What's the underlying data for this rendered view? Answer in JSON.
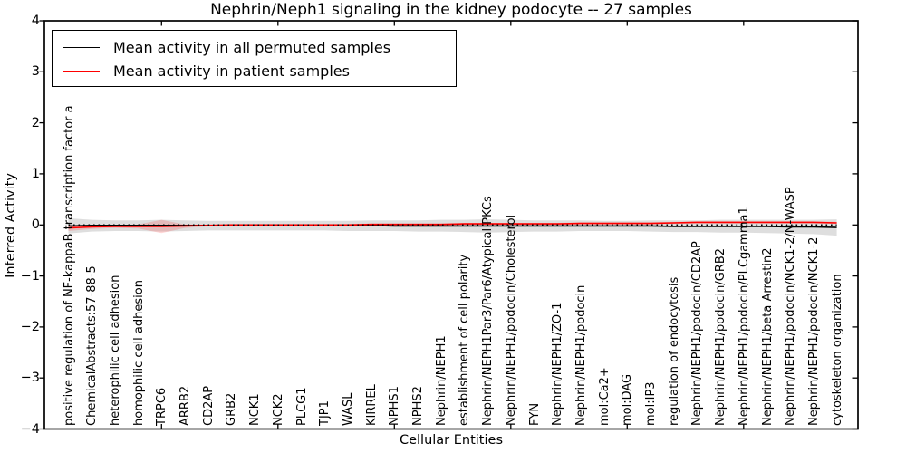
{
  "title": "Nephrin/Neph1 signaling in the kidney podocyte -- 27 samples",
  "axes": {
    "x_label": "Cellular Entities",
    "y_label": "Inferred Activity",
    "y_tick_labels": [
      "4",
      "3",
      "2",
      "1",
      "0",
      "−1",
      "−2",
      "−3",
      "−4"
    ],
    "y_tick_values": [
      4,
      3,
      2,
      1,
      0,
      -1,
      -2,
      -3,
      -4
    ]
  },
  "legend": {
    "items": [
      {
        "label": "Mean activity in all permuted samples",
        "color": "#000000"
      },
      {
        "label": "Mean activity in patient samples",
        "color": "#ff0000"
      }
    ]
  },
  "colors": {
    "permuted_line": "#000000",
    "permuted_band": "rgba(0,0,0,0.13)",
    "patient_line": "#ff0000",
    "patient_band": "rgba(255,0,0,0.16)",
    "zero_line": "#000000",
    "frame": "#000000",
    "background": "#ffffff"
  },
  "chart_data": {
    "type": "line",
    "title": "Nephrin/Neph1 signaling in the kidney podocyte -- 27 samples",
    "xlabel": "Cellular Entities",
    "ylabel": "Inferred Activity",
    "ylim": [
      -4,
      4
    ],
    "grid": false,
    "legend_position": "upper left",
    "x_tick_rotation": 90,
    "zero_line": true,
    "categories": [
      "positive regulation of NF-kappaB transcription factor a",
      "ChemicalAbstracts:57-88-5",
      "heterophilic cell adhesion",
      "homophilic cell adhesion",
      "TRPC6",
      "ARRB2",
      "CD2AP",
      "GRB2",
      "NCK1",
      "NCK2",
      "PLCG1",
      "TJP1",
      "WASL",
      "KIRREL",
      "NPHS1",
      "NPHS2",
      "Nephrin/NEPH1",
      "establishment of cell polarity",
      "Nephrin/NEPH1Par3/Par6/Atypical PKCs",
      "Nephrin/NEPH1/podocin/Cholesterol",
      "FYN",
      "Nephrin/NEPH1/ZO-1",
      "Nephrin/NEPH1/podocin",
      "mol:Ca2+",
      "mol:DAG",
      "mol:IP3",
      "regulation of endocytosis",
      "Nephrin/NEPH1/podocin/CD2AP",
      "Nephrin/NEPH1/podocin/GRB2",
      "Nephrin/NEPH1/podocin/PLCgamma1",
      "Nephrin/NEPH1/beta Arrestin2",
      "Nephrin/NEPH1/podocin/NCK1-2/N-WASP",
      "Nephrin/NEPH1/podocin/NCK1-2",
      "cytoskeleton organization"
    ],
    "series": [
      {
        "name": "Mean activity in all permuted samples",
        "color": "#000000",
        "band_color": "rgba(0,0,0,0.13)",
        "values": [
          -0.02,
          -0.01,
          -0.01,
          -0.01,
          -0.01,
          -0.01,
          -0.01,
          -0.01,
          -0.01,
          -0.01,
          -0.01,
          -0.01,
          -0.01,
          -0.01,
          -0.02,
          -0.02,
          -0.02,
          -0.02,
          -0.02,
          -0.02,
          -0.02,
          -0.02,
          -0.02,
          -0.02,
          -0.02,
          -0.02,
          -0.03,
          -0.03,
          -0.03,
          -0.03,
          -0.03,
          -0.04,
          -0.04,
          -0.05
        ],
        "band_upper": [
          0.13,
          0.1,
          0.09,
          0.09,
          0.1,
          0.09,
          0.08,
          0.08,
          0.08,
          0.08,
          0.08,
          0.08,
          0.08,
          0.09,
          0.09,
          0.09,
          0.1,
          0.1,
          0.11,
          0.1,
          0.09,
          0.09,
          0.09,
          0.08,
          0.08,
          0.09,
          0.09,
          0.09,
          0.1,
          0.1,
          0.1,
          0.1,
          0.1,
          0.11
        ],
        "band_lower": [
          -0.17,
          -0.13,
          -0.12,
          -0.12,
          -0.13,
          -0.12,
          -0.11,
          -0.11,
          -0.11,
          -0.11,
          -0.11,
          -0.11,
          -0.12,
          -0.12,
          -0.12,
          -0.13,
          -0.13,
          -0.14,
          -0.15,
          -0.14,
          -0.13,
          -0.13,
          -0.12,
          -0.12,
          -0.12,
          -0.13,
          -0.14,
          -0.14,
          -0.15,
          -0.15,
          -0.16,
          -0.17,
          -0.18,
          -0.21
        ]
      },
      {
        "name": "Mean activity in patient samples",
        "color": "#ff0000",
        "band_color": "rgba(255,0,0,0.16)",
        "values": [
          -0.06,
          -0.04,
          -0.03,
          -0.03,
          -0.03,
          -0.02,
          -0.01,
          0.0,
          0.0,
          0.0,
          0.0,
          0.0,
          0.0,
          0.01,
          0.01,
          0.01,
          0.01,
          0.02,
          0.02,
          0.02,
          0.02,
          0.02,
          0.03,
          0.03,
          0.03,
          0.03,
          0.04,
          0.05,
          0.05,
          0.05,
          0.05,
          0.05,
          0.05,
          0.04
        ],
        "band_upper": [
          -0.01,
          -0.01,
          0.0,
          0.01,
          0.1,
          0.01,
          0.01,
          0.02,
          0.02,
          0.02,
          0.02,
          0.02,
          0.02,
          0.03,
          0.03,
          0.03,
          0.03,
          0.04,
          0.04,
          0.04,
          0.04,
          0.04,
          0.05,
          0.05,
          0.05,
          0.05,
          0.06,
          0.07,
          0.07,
          0.07,
          0.07,
          0.07,
          0.07,
          0.06
        ],
        "band_lower": [
          -0.12,
          -0.08,
          -0.06,
          -0.07,
          -0.16,
          -0.06,
          -0.03,
          -0.02,
          -0.02,
          -0.02,
          -0.02,
          -0.02,
          -0.02,
          -0.01,
          -0.01,
          -0.01,
          -0.01,
          0.0,
          0.0,
          0.0,
          0.0,
          0.0,
          0.01,
          0.01,
          0.01,
          0.01,
          0.02,
          0.03,
          0.03,
          0.03,
          0.03,
          0.03,
          0.03,
          0.02
        ]
      }
    ]
  }
}
